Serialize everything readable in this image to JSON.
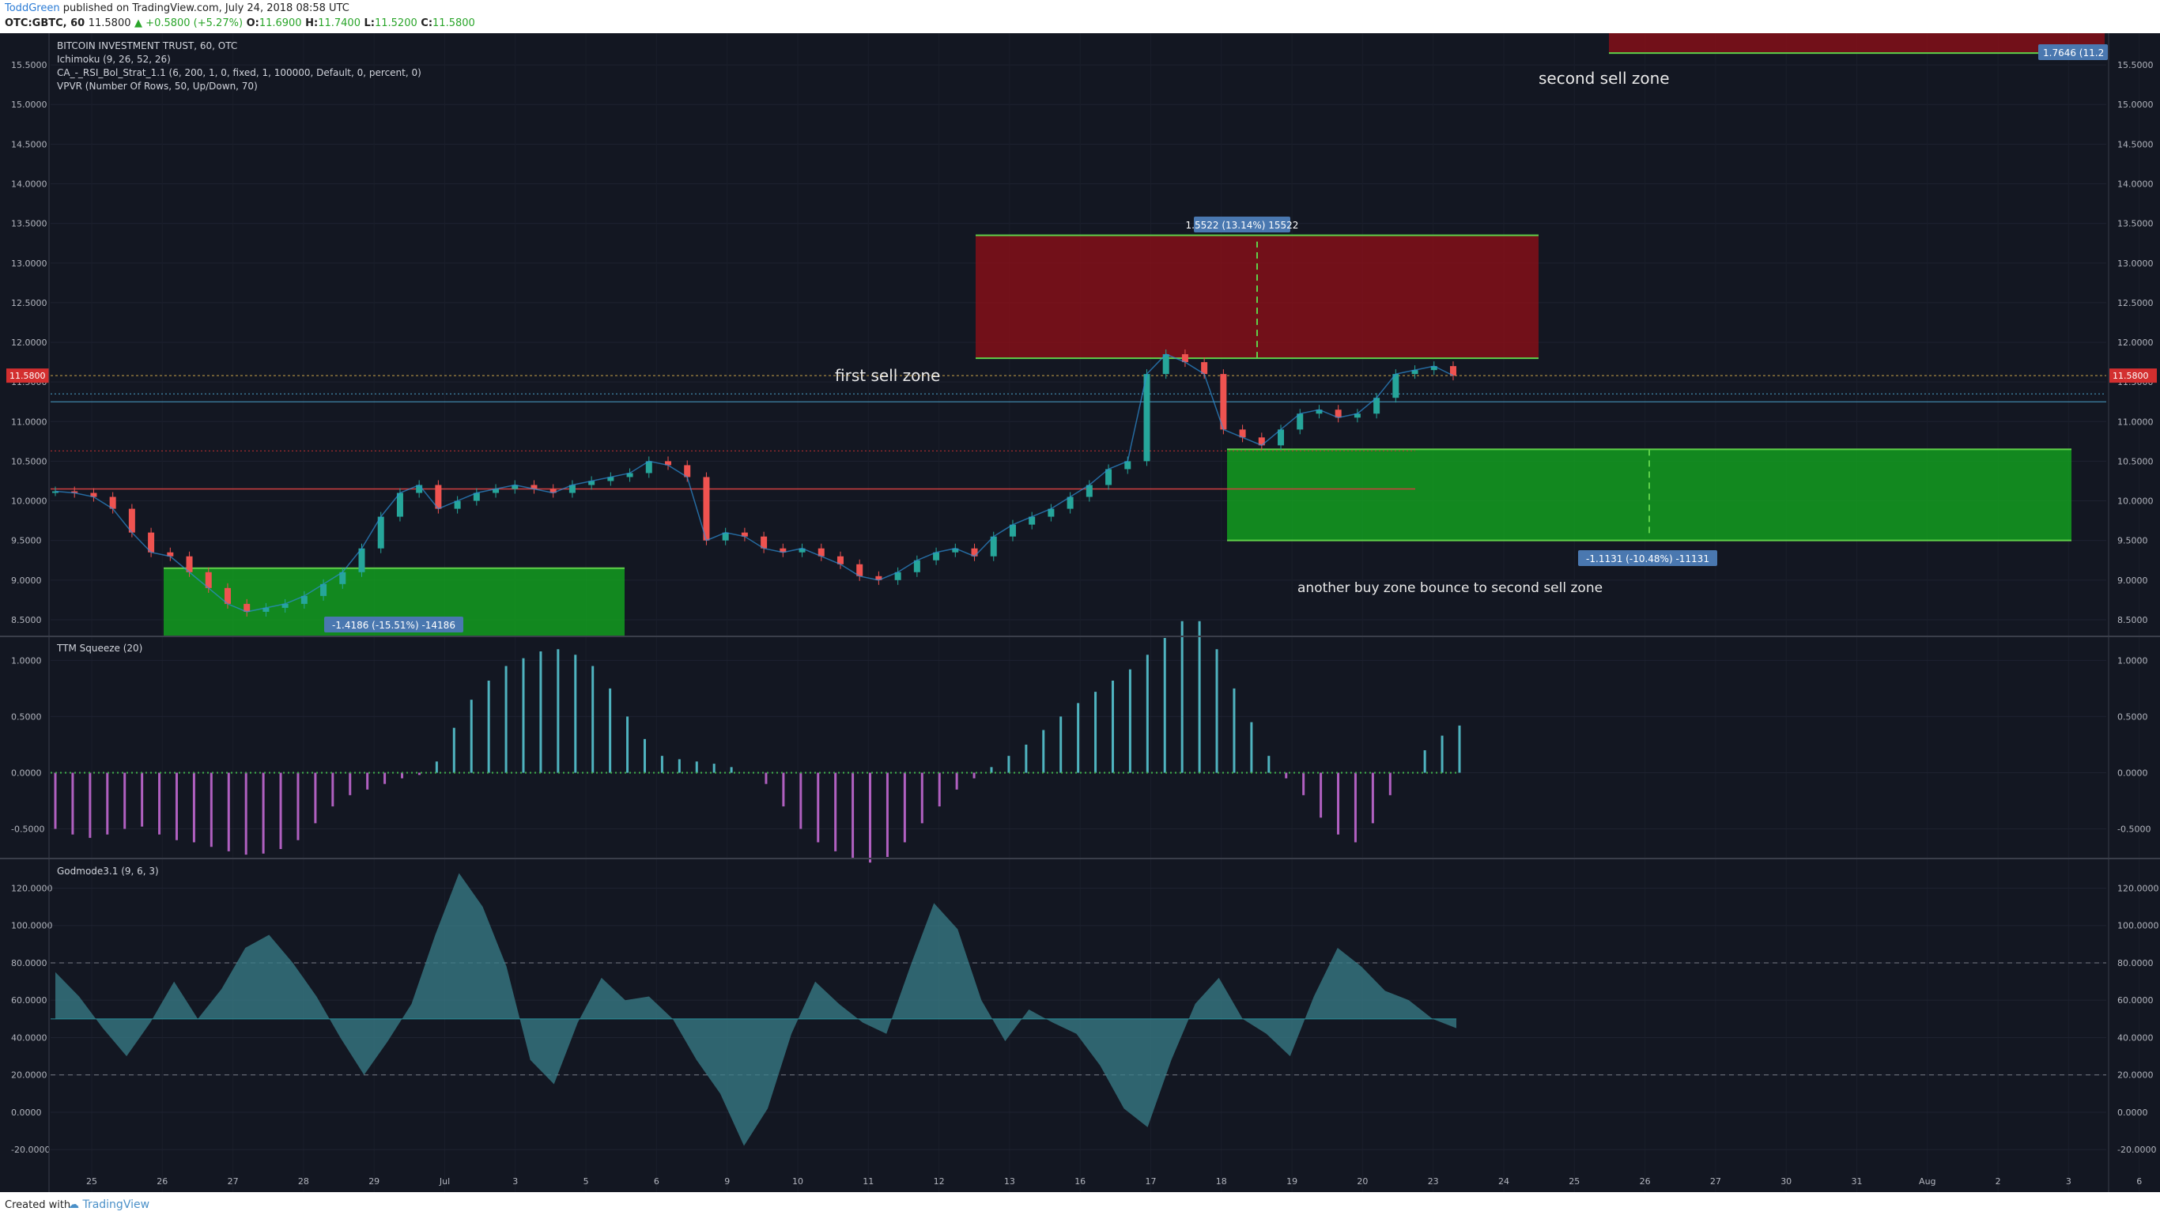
{
  "header": {
    "author": "ToddGreen",
    "published": "published on TradingView.com, July 24, 2018 08:58 UTC",
    "symbol": "OTC:GBTC, 60",
    "last": "11.5800",
    "change": "+0.5800 (+5.27%)",
    "open_label": "O:",
    "open": "11.6900",
    "high_label": "H:",
    "high": "11.7400",
    "low_label": "L:",
    "low": "11.5200",
    "close_label": "C:",
    "close": "11.5800"
  },
  "footer": {
    "created_with": "Created with",
    "brand": "TradingView"
  },
  "legend": {
    "title": "BITCOIN INVESTMENT TRUST, 60, OTC",
    "ichimoku": "Ichimoku (9, 26, 52, 26)",
    "strat": "CA_-_RSI_Bol_Strat_1.1 (6, 200, 1, 0, fixed, 1, 100000, Default, 0, percent, 0)",
    "vpvr": "VPVR (Number Of Rows, 50, Up/Down, 70)",
    "ttm": "TTM Squeeze (20)",
    "godmode": "Godmode3.1 (9, 6, 3)"
  },
  "annotations": {
    "first_sell": "first sell zone",
    "second_sell": "second sell zone",
    "another_buy": "another buy zone bounce to second sell zone",
    "measure_up": "1.5522 (13.14%) 15522",
    "measure_down": "-1.1131 (-10.48%) -11131",
    "measure_left": "-1.4186 (-15.51%) -14186",
    "measure_top": "1.7646 (11.2",
    "price_tag": "11.5800"
  },
  "colors": {
    "background": "#131722",
    "bull": "#26a69a",
    "bear": "#ef5350",
    "sell_zone": "#8b0f18",
    "buy_zone": "#13a51f",
    "squeeze_up": "#4fb3bf",
    "squeeze_down": "#b060c0",
    "godmode_fill": "#3a7f8a"
  },
  "chart_data": [
    {
      "type": "line",
      "panel": "price",
      "title": "BITCOIN INVESTMENT TRUST, 60, OTC",
      "ylim": [
        8.3,
        15.9
      ],
      "y_ticks": [
        "8.5000",
        "9.0000",
        "9.5000",
        "10.0000",
        "10.5000",
        "11.0000",
        "11.5000",
        "12.0000",
        "12.5000",
        "13.0000",
        "13.5000",
        "14.0000",
        "14.5000",
        "15.0000",
        "15.5000"
      ],
      "x_ticks": [
        "25",
        "26",
        "27",
        "28",
        "29",
        "Jul",
        "3",
        "5",
        "6",
        "9",
        "10",
        "11",
        "12",
        "13",
        "16",
        "17",
        "18",
        "19",
        "20",
        "23",
        "24",
        "25",
        "26",
        "27",
        "30",
        "31",
        "Aug",
        "2",
        "3",
        "6"
      ],
      "close": [
        10.12,
        10.1,
        10.05,
        9.9,
        9.6,
        9.35,
        9.3,
        9.1,
        8.9,
        8.7,
        8.6,
        8.65,
        8.7,
        8.8,
        8.95,
        9.1,
        9.4,
        9.8,
        10.1,
        10.2,
        9.9,
        10.0,
        10.1,
        10.15,
        10.2,
        10.15,
        10.1,
        10.2,
        10.25,
        10.3,
        10.35,
        10.5,
        10.45,
        10.3,
        9.5,
        9.6,
        9.55,
        9.4,
        9.35,
        9.4,
        9.3,
        9.2,
        9.05,
        9.0,
        9.1,
        9.25,
        9.35,
        9.4,
        9.3,
        9.55,
        9.7,
        9.8,
        9.9,
        10.05,
        10.2,
        10.4,
        10.5,
        11.6,
        11.85,
        11.75,
        11.6,
        10.9,
        10.8,
        10.7,
        10.9,
        11.1,
        11.15,
        11.05,
        11.1,
        11.3,
        11.6,
        11.65,
        11.7,
        11.58
      ],
      "sell_zones": [
        {
          "from": 11.8,
          "to": 13.35
        },
        {
          "from": 15.65,
          "to": 16.0
        }
      ],
      "buy_zones": [
        {
          "from": 9.5,
          "to": 10.65
        },
        {
          "from": 8.3,
          "to": 9.15
        }
      ]
    },
    {
      "type": "bar",
      "panel": "ttm",
      "title": "TTM Squeeze (20)",
      "ylim": [
        -0.75,
        1.2
      ],
      "y_ticks": [
        "1.0000",
        "0.5000",
        "0.0000",
        "-0.5000"
      ],
      "values": [
        -0.5,
        -0.55,
        -0.58,
        -0.55,
        -0.5,
        -0.48,
        -0.55,
        -0.6,
        -0.62,
        -0.66,
        -0.7,
        -0.73,
        -0.72,
        -0.68,
        -0.6,
        -0.45,
        -0.3,
        -0.2,
        -0.15,
        -0.1,
        -0.05,
        -0.02,
        0.1,
        0.4,
        0.65,
        0.82,
        0.95,
        1.02,
        1.08,
        1.1,
        1.05,
        0.95,
        0.75,
        0.5,
        0.3,
        0.15,
        0.12,
        0.1,
        0.08,
        0.05,
        0.0,
        -0.1,
        -0.3,
        -0.5,
        -0.62,
        -0.7,
        -0.76,
        -0.8,
        -0.75,
        -0.62,
        -0.45,
        -0.3,
        -0.15,
        -0.05,
        0.05,
        0.15,
        0.25,
        0.38,
        0.5,
        0.62,
        0.72,
        0.82,
        0.92,
        1.05,
        1.2,
        1.35,
        1.35,
        1.1,
        0.75,
        0.45,
        0.15,
        -0.05,
        -0.2,
        -0.4,
        -0.55,
        -0.62,
        -0.45,
        -0.2,
        0.0,
        0.2,
        0.33,
        0.42
      ]
    },
    {
      "type": "area",
      "panel": "godmode",
      "title": "Godmode3.1 (9, 6, 3)",
      "ylim": [
        -25,
        135
      ],
      "y_ticks": [
        "120.0000",
        "100.0000",
        "80.0000",
        "60.0000",
        "40.0000",
        "20.0000",
        "0.0000",
        "-20.0000"
      ],
      "baseline": 50,
      "levels": [
        80,
        20
      ],
      "values": [
        75,
        62,
        45,
        30,
        48,
        70,
        50,
        66,
        88,
        95,
        80,
        62,
        40,
        20,
        38,
        58,
        95,
        128,
        110,
        78,
        28,
        15,
        48,
        72,
        60,
        62,
        50,
        28,
        10,
        -18,
        2,
        42,
        70,
        58,
        48,
        42,
        78,
        112,
        98,
        60,
        38,
        55,
        48,
        42,
        25,
        2,
        -8,
        28,
        58,
        72,
        50,
        42,
        30,
        62,
        88,
        78,
        65,
        60,
        50,
        45
      ]
    }
  ]
}
